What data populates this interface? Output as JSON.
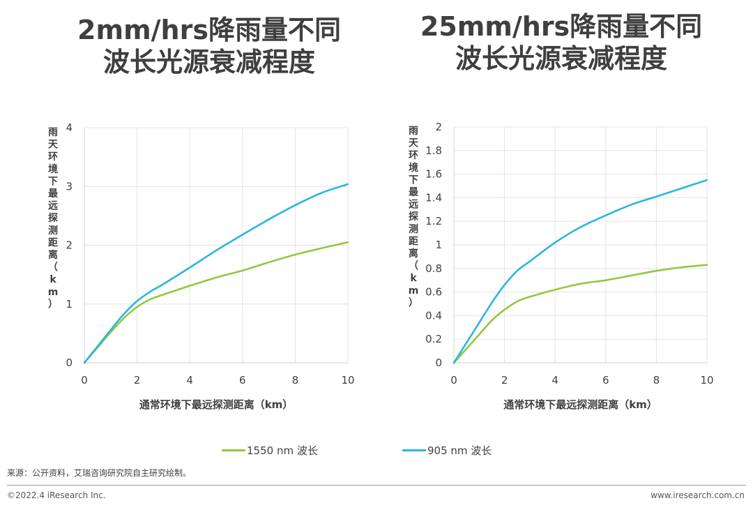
{
  "chart_data": [
    {
      "type": "line",
      "title": "2mm/hrs降雨量不同\n波长光源衰减程度",
      "title_lines": [
        "2mm/hrs降雨量不同",
        "波长光源衰减程度"
      ],
      "xlabel": "通常环境下最远探测距离（km）",
      "ylabel": "雨天环境下最远探测距离（km）",
      "xlim": [
        0,
        10
      ],
      "ylim": [
        0,
        4
      ],
      "xticks": [
        0,
        2,
        4,
        6,
        8,
        10
      ],
      "yticks": [
        0,
        1,
        2,
        3,
        4
      ],
      "grid": true,
      "series": [
        {
          "name": "1550 nm 波长",
          "color": "#92c83e",
          "x": [
            0,
            0.5,
            1,
            1.5,
            2,
            2.5,
            3,
            4,
            5,
            6,
            7,
            8,
            9,
            10
          ],
          "y": [
            0,
            0.26,
            0.52,
            0.76,
            0.95,
            1.08,
            1.16,
            1.31,
            1.45,
            1.57,
            1.71,
            1.84,
            1.95,
            2.05
          ]
        },
        {
          "name": "905 nm 波长",
          "color": "#29b6e0",
          "x": [
            0,
            0.5,
            1,
            1.5,
            2,
            2.5,
            3,
            4,
            5,
            6,
            7,
            8,
            9,
            10
          ],
          "y": [
            0,
            0.28,
            0.56,
            0.83,
            1.05,
            1.21,
            1.34,
            1.62,
            1.91,
            2.18,
            2.44,
            2.68,
            2.89,
            3.04
          ]
        }
      ]
    },
    {
      "type": "line",
      "title": "25mm/hrs降雨量不同\n波长光源衰减程度",
      "title_lines": [
        "25mm/hrs降雨量不同",
        "波长光源衰减程度"
      ],
      "xlabel": "通常环境下最远探测距离（km）",
      "ylabel": "雨天环境下最远探测距离（km）",
      "xlim": [
        0,
        10
      ],
      "ylim": [
        0,
        2
      ],
      "xticks": [
        0,
        2,
        4,
        6,
        8,
        10
      ],
      "yticks": [
        0,
        0.2,
        0.4,
        0.6,
        0.8,
        1,
        1.2,
        1.4,
        1.6,
        1.8,
        2
      ],
      "grid": true,
      "series": [
        {
          "name": "1550 nm 波长",
          "color": "#92c83e",
          "x": [
            0,
            0.5,
            1,
            1.5,
            2,
            2.5,
            3,
            4,
            5,
            6,
            7,
            8,
            9,
            10
          ],
          "y": [
            0,
            0.12,
            0.24,
            0.36,
            0.45,
            0.52,
            0.56,
            0.62,
            0.67,
            0.7,
            0.74,
            0.78,
            0.81,
            0.83
          ]
        },
        {
          "name": "905 nm 波长",
          "color": "#29b6e0",
          "x": [
            0,
            0.5,
            1,
            1.5,
            2,
            2.5,
            3,
            4,
            5,
            6,
            7,
            8,
            9,
            10
          ],
          "y": [
            0,
            0.17,
            0.34,
            0.51,
            0.66,
            0.78,
            0.86,
            1.02,
            1.15,
            1.25,
            1.34,
            1.41,
            1.48,
            1.55
          ]
        }
      ]
    }
  ],
  "legend": {
    "items": [
      {
        "label": "1550 nm 波长",
        "color": "#92c83e"
      },
      {
        "label": "905 nm 波长",
        "color": "#29b6e0"
      }
    ]
  },
  "source": "来源：公开资料，艾瑞咨询研究院自主研究绘制。",
  "footer": {
    "copyright": "©2022.4 iResearch Inc.",
    "website": "www.iresearch.com.cn"
  }
}
